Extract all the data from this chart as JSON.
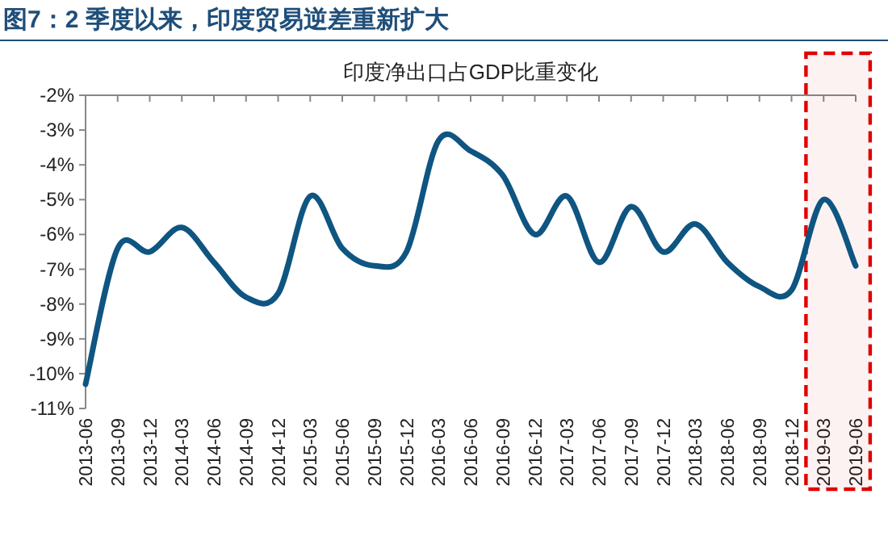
{
  "chart_data": {
    "type": "line",
    "title": "图7：2 季度以来，印度贸易逆差重新扩大",
    "subtitle": "印度净出口占GDP比重变化",
    "categories": [
      "2013-06",
      "2013-09",
      "2013-12",
      "2014-03",
      "2014-06",
      "2014-09",
      "2014-12",
      "2015-03",
      "2015-06",
      "2015-09",
      "2015-12",
      "2016-03",
      "2016-06",
      "2016-09",
      "2016-12",
      "2017-03",
      "2017-06",
      "2017-09",
      "2017-12",
      "2018-03",
      "2018-06",
      "2018-09",
      "2018-12",
      "2019-03",
      "2019-06"
    ],
    "series": [
      {
        "color": "#0f5581",
        "values": [
          -10.3,
          -6.4,
          -6.5,
          -5.8,
          -6.8,
          -7.8,
          -7.7,
          -4.9,
          -6.4,
          -6.9,
          -6.5,
          -3.3,
          -3.6,
          -4.3,
          -6.0,
          -4.9,
          -6.8,
          -5.2,
          -6.5,
          -5.7,
          -6.8,
          -7.5,
          -7.6,
          -5.0,
          -6.9
        ]
      }
    ],
    "ylim": [
      -11,
      -2
    ],
    "yticks": [
      {
        "value": -2,
        "label": "-2%"
      },
      {
        "value": -3,
        "label": "-3%"
      },
      {
        "value": -4,
        "label": "-4%"
      },
      {
        "value": -5,
        "label": "-5%"
      },
      {
        "value": -6,
        "label": "-6%"
      },
      {
        "value": -7,
        "label": "-7%"
      },
      {
        "value": -8,
        "label": "-8%"
      },
      {
        "value": -9,
        "label": "-9%"
      },
      {
        "value": -10,
        "label": "-10%"
      },
      {
        "value": -11,
        "label": "-11%"
      }
    ],
    "bands": [
      {
        "axis": "x",
        "from": "2019-03",
        "to": "2019-06",
        "color": "#e00000"
      }
    ],
    "grid": false,
    "marker": "none",
    "line_style": "solid"
  }
}
